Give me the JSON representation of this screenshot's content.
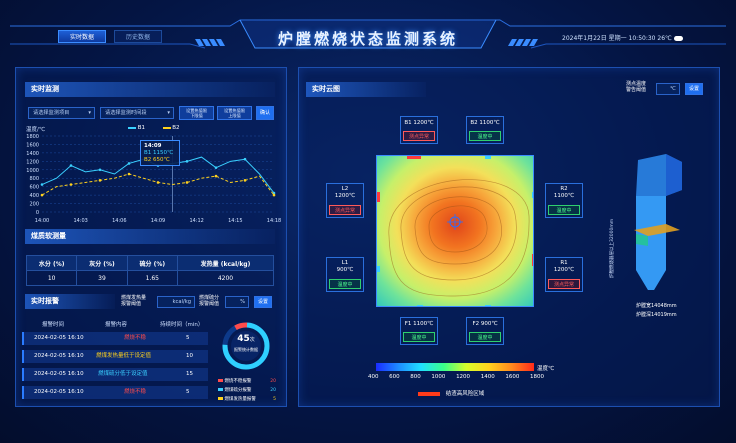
{
  "header": {
    "tabs": [
      "实时数据",
      "历史数据"
    ],
    "title": "炉膛燃烧状态监测系统",
    "datetime": "2024年1月22日  星期一  10:50:30  26℃"
  },
  "realtime": {
    "title": "实时监测",
    "select1": "请选择监测项目",
    "select2": "请选择监测时间段",
    "btn_lower": "设置热值限\n下限值",
    "btn_upper": "设置热值限\n上限值",
    "btn_confirm": "确认",
    "yunit": "温度/℃",
    "legend": [
      "B1",
      "B2"
    ],
    "tooltip": {
      "time": "14:09",
      "b1": "B1   1150℃",
      "b2": "B2   650℃"
    }
  },
  "chart_data": {
    "type": "line",
    "categories": [
      "14:00",
      "14:01",
      "14:02",
      "14:03",
      "14:04",
      "14:05",
      "14:06",
      "14:07",
      "14:08",
      "14:09",
      "14:10",
      "14:11",
      "14:12",
      "14:13",
      "14:14",
      "14:15",
      "14:16"
    ],
    "series": [
      {
        "name": "B1",
        "values": [
          650,
          800,
          1100,
          950,
          1000,
          900,
          1150,
          1250,
          1100,
          1150,
          1200,
          1300,
          1050,
          1200,
          1250,
          900,
          450
        ]
      },
      {
        "name": "B2",
        "values": [
          400,
          600,
          650,
          700,
          750,
          800,
          900,
          800,
          700,
          650,
          700,
          800,
          850,
          700,
          750,
          850,
          400
        ]
      }
    ],
    "yticks": [
      0,
      200,
      400,
      600,
      800,
      1000,
      1200,
      1400,
      1600,
      1800
    ],
    "xticks": [
      "14:00",
      "14:03",
      "14:06",
      "14:09",
      "14:12",
      "14:15",
      "14:18"
    ],
    "ylim": [
      0,
      1800
    ],
    "colors": [
      "#3ad0ff",
      "#ffd21e"
    ]
  },
  "coal": {
    "title": "煤质软测量",
    "headers": [
      "水分 (%)",
      "灰分 (%)",
      "硫分 (%)",
      "发热量 (kcal/kg)"
    ],
    "values": [
      "10",
      "39",
      "1.65",
      "4200"
    ]
  },
  "alarm": {
    "title": "实时报警",
    "heat_label": "燃煤发热量\n报警阈值",
    "heat_unit": "kcal/kg",
    "sulfur_label": "燃煤硫分\n报警阈值",
    "sulfur_unit": "%",
    "set": "设置",
    "headers": [
      "报警时间",
      "报警内容",
      "持续时间（min）"
    ],
    "rows": [
      {
        "time": "2024-02-05  16:10",
        "content": "燃烧不稳",
        "color": "#ff4b4b",
        "dur": "5"
      },
      {
        "time": "2024-02-05  16:10",
        "content": "燃煤发热量低于设定值",
        "color": "#ffd21e",
        "dur": "10"
      },
      {
        "time": "2024-02-05  16:10",
        "content": "燃煤硫分低于设定值",
        "color": "#3ad0ff",
        "dur": "15"
      },
      {
        "time": "2024-02-05  16:10",
        "content": "燃烧不稳",
        "color": "#ff4b4b",
        "dur": "5"
      }
    ],
    "total": "45",
    "total_unit": "次",
    "total_label": "报警统计数据",
    "legend": [
      {
        "name": "燃烧不稳报警",
        "count": "20",
        "color": "#ff4b4b"
      },
      {
        "name": "燃煤硫分报警",
        "count": "20",
        "color": "#3ad0ff"
      },
      {
        "name": "燃煤发热量报警",
        "count": "5",
        "color": "#ffd21e"
      }
    ]
  },
  "cloud": {
    "title": "实时云图",
    "thr_label": "测点温度\n警告阈值",
    "thr_unit": "℃",
    "set": "设置",
    "points": [
      {
        "id": "B1",
        "name": "B1  1200℃",
        "status": "测点异常",
        "state": "red"
      },
      {
        "id": "B2",
        "name": "B2  1100℃",
        "status": "温度中",
        "state": "green"
      },
      {
        "id": "L2",
        "name": "L2\n1200℃",
        "status": "测点异常",
        "state": "red"
      },
      {
        "id": "R2",
        "name": "R2\n1100℃",
        "status": "温度中",
        "state": "green"
      },
      {
        "id": "L1",
        "name": "L1\n900℃",
        "status": "温度中",
        "state": "green"
      },
      {
        "id": "R1",
        "name": "R1\n1200℃",
        "status": "测点异常",
        "state": "red"
      },
      {
        "id": "F1",
        "name": "F1  1100℃",
        "status": "温度中",
        "state": "green"
      },
      {
        "id": "F2",
        "name": "F2  900℃",
        "status": "温度中",
        "state": "green"
      }
    ],
    "scale": [
      "400",
      "600",
      "800",
      "1000",
      "1200",
      "1400",
      "1600",
      "1800"
    ],
    "scale_unit": "温度℃",
    "risk_label": "结渣高风险区域",
    "furnace_side": "炉膛燃烧器层以上32000mm",
    "depth": "炉膛宽14048mm",
    "width": "炉膛深14019mm"
  }
}
